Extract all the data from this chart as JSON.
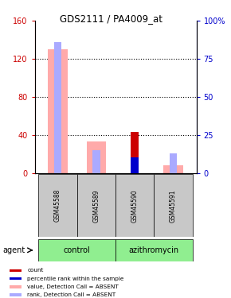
{
  "title": "GDS2111 / PA4009_at",
  "samples": [
    "GSM45588",
    "GSM45589",
    "GSM45590",
    "GSM45591"
  ],
  "ylim_left": [
    0,
    160
  ],
  "ylim_right": [
    0,
    100
  ],
  "yticks_left": [
    0,
    40,
    80,
    120,
    160
  ],
  "yticks_right": [
    0,
    25,
    50,
    75,
    100
  ],
  "left_color": "#cc0000",
  "right_color": "#0000cc",
  "value_absent": [
    130,
    33,
    0,
    8
  ],
  "rank_absent": [
    86,
    15,
    0,
    13
  ],
  "count_value": [
    0,
    0,
    43,
    0
  ],
  "rank_present": [
    0,
    0,
    10,
    0
  ],
  "grid_lines": [
    40,
    80,
    120
  ],
  "legend_items": [
    {
      "label": "count",
      "color": "#cc0000"
    },
    {
      "label": "percentile rank within the sample",
      "color": "#0000cc"
    },
    {
      "label": "value, Detection Call = ABSENT",
      "color": "#ffaaaa"
    },
    {
      "label": "rank, Detection Call = ABSENT",
      "color": "#aaaaff"
    }
  ],
  "control_label": "control",
  "azithromycin_label": "azithromycin",
  "agent_label": "agent",
  "group_color": "#90EE90",
  "sample_box_color": "#c8c8c8"
}
